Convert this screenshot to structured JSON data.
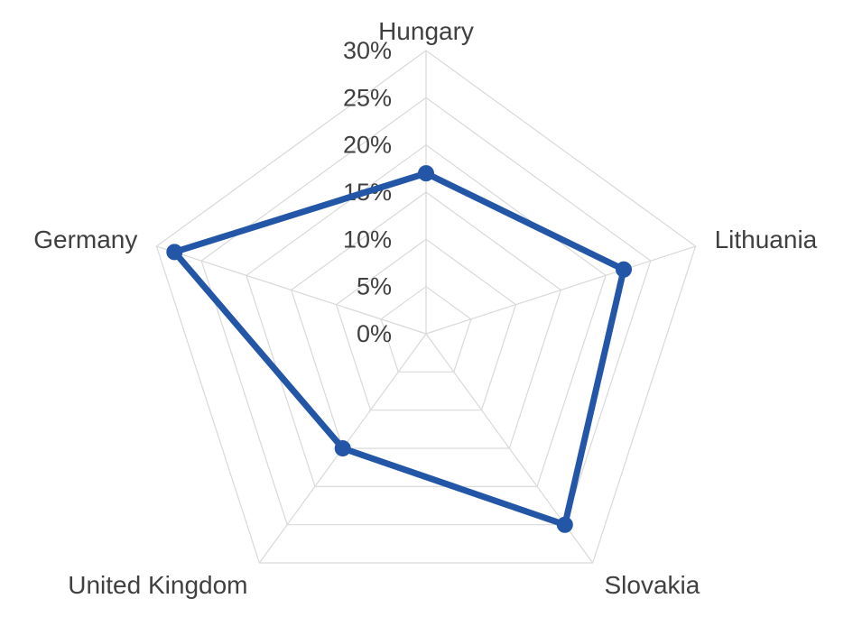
{
  "chart_data": {
    "type": "radar",
    "categories": [
      "Hungary",
      "Lithuania",
      "Slovakia",
      "United Kingdom",
      "Germany"
    ],
    "series": [
      {
        "values": [
          17,
          22,
          25,
          15,
          28
        ],
        "color": "#2356A6"
      }
    ],
    "rlim": [
      0,
      30
    ],
    "ticks": [
      {
        "value": 0,
        "label": "0%"
      },
      {
        "value": 5,
        "label": "5%"
      },
      {
        "value": 10,
        "label": "10%"
      },
      {
        "value": 15,
        "label": "15%"
      },
      {
        "value": 20,
        "label": "20%"
      },
      {
        "value": 25,
        "label": "25%"
      },
      {
        "value": 30,
        "label": "30%"
      }
    ],
    "grid": true,
    "legend": "none",
    "grid_color": "#d9d9d9",
    "text_color": "#404040"
  }
}
